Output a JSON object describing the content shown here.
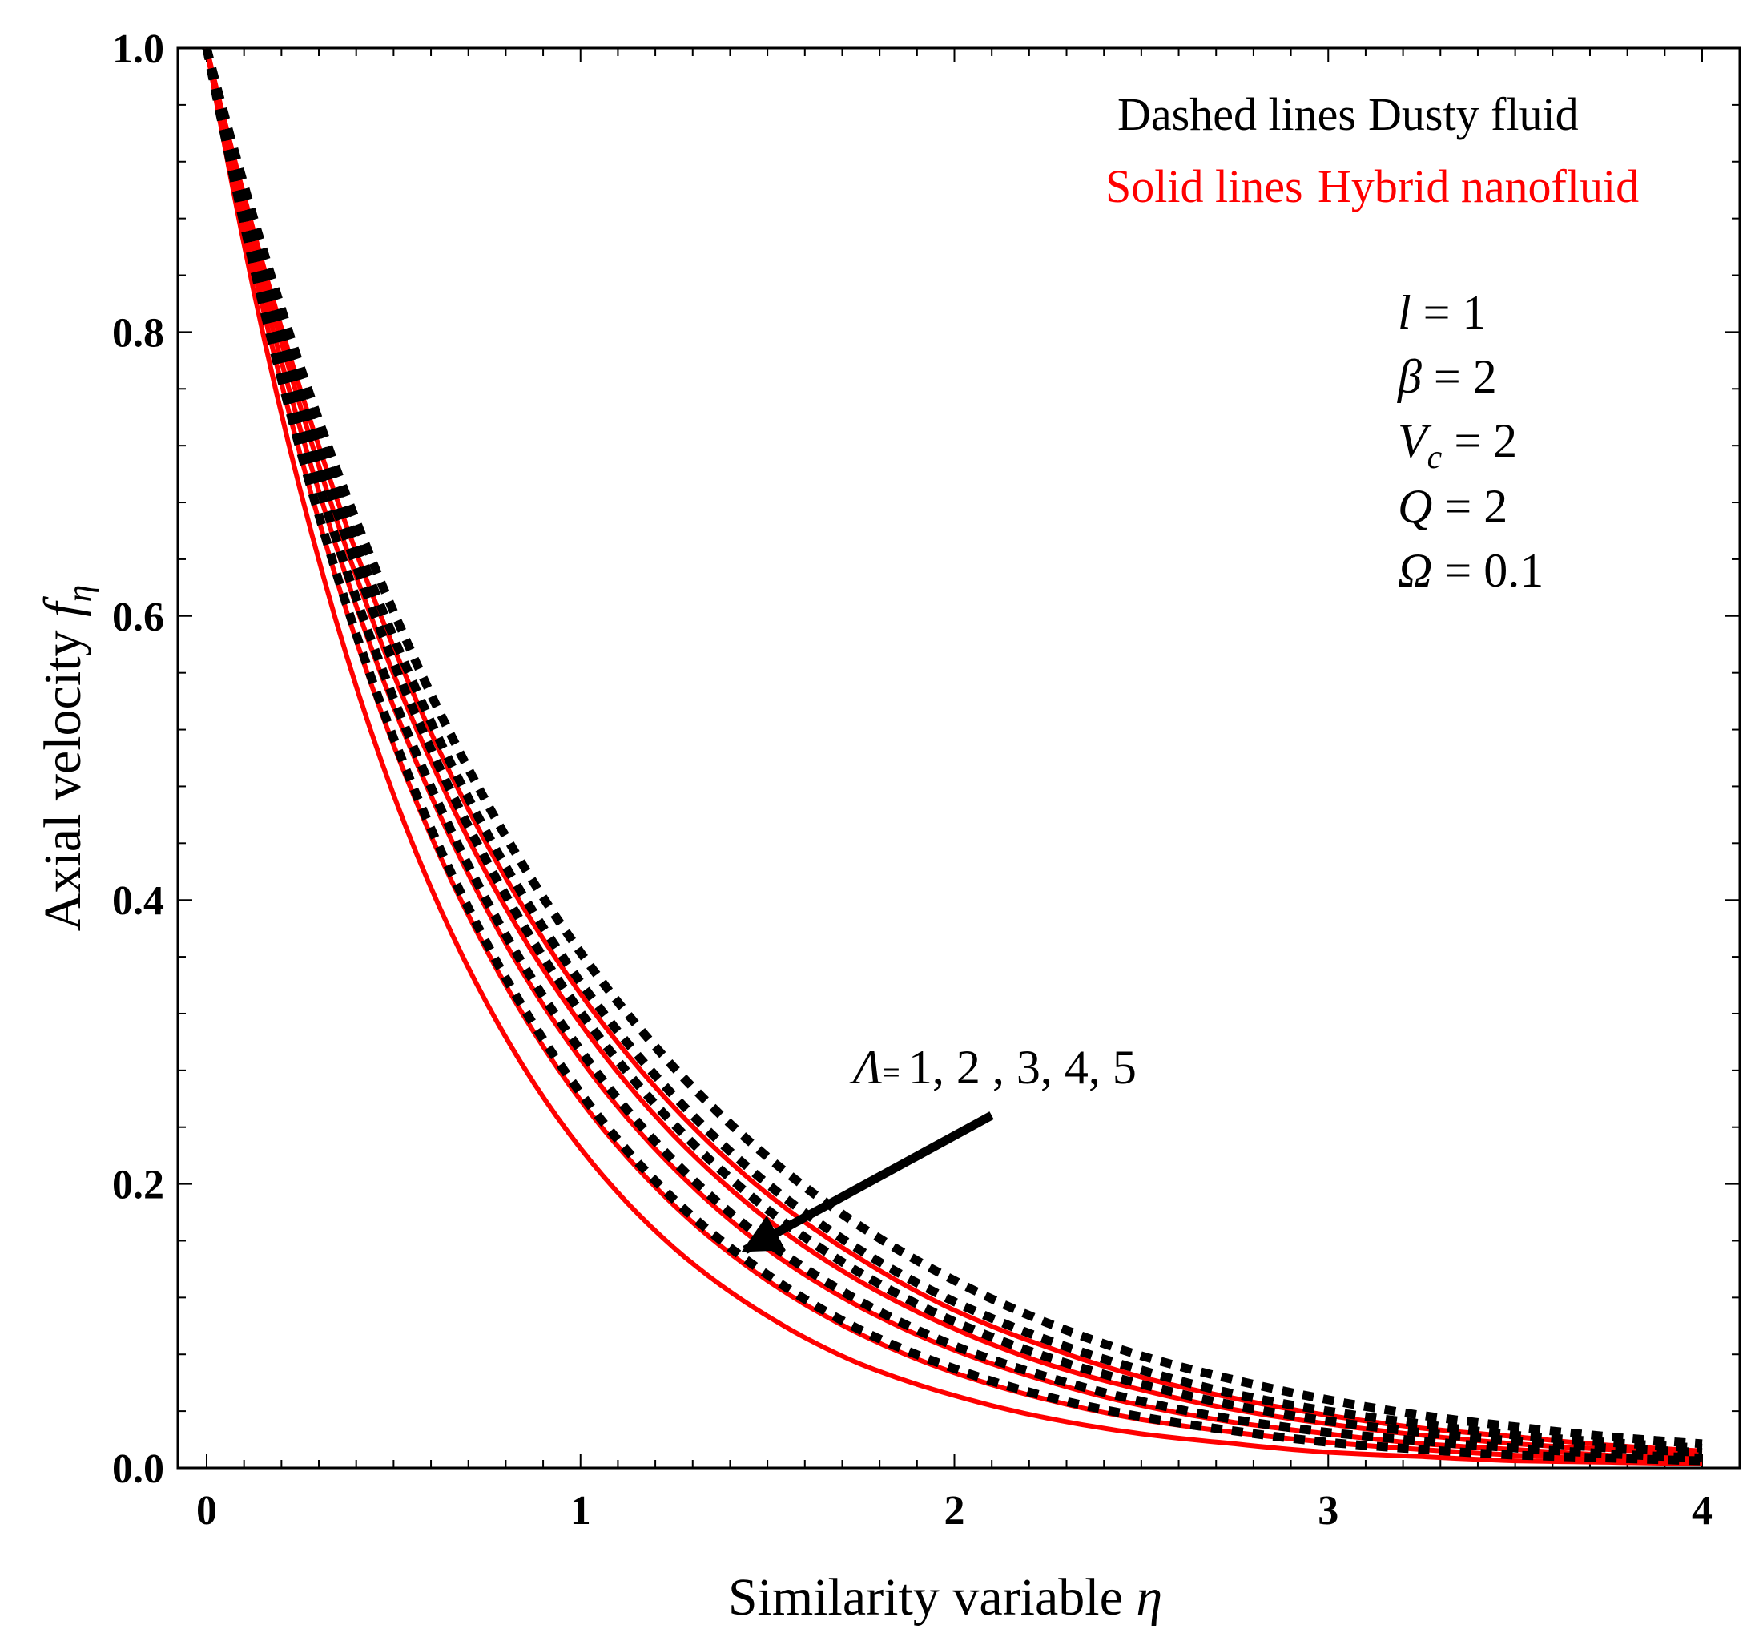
{
  "chart_data": {
    "type": "line",
    "title": "",
    "xlabel": "Similarity variable",
    "xlabel_symbol": "η",
    "ylabel": "Axial  velocity",
    "ylabel_symbol": "f",
    "ylabel_subscript": "η",
    "xlim": [
      0,
      4
    ],
    "ylim": [
      0,
      1
    ],
    "x_ticks": [
      "0",
      "1",
      "2",
      "3",
      "4"
    ],
    "y_ticks": [
      "0.0",
      "0.2",
      "0.4",
      "0.6",
      "0.8",
      "1.0"
    ],
    "grid": false,
    "legend_notes": [
      {
        "style": "Dashed lines",
        "label": "Dusty fluid",
        "color": "#000000"
      },
      {
        "style": "Solid lines",
        "label": "Hybrid nanofluid",
        "color": "#ff0000"
      }
    ],
    "parameters": [
      {
        "symbol": "l",
        "sub": "",
        "value": "1"
      },
      {
        "symbol": "β",
        "sub": "",
        "value": "2"
      },
      {
        "symbol": "V",
        "sub": "c",
        "value": "2"
      },
      {
        "symbol": "Q",
        "sub": "",
        "value": "2"
      },
      {
        "symbol": "Ω",
        "sub": "",
        "value": "0.1"
      }
    ],
    "annotation": {
      "symbol": "Λ",
      "text": "1,  2 , 3, 4, 5"
    },
    "x": [
      0,
      0.25,
      0.5,
      0.75,
      1.0,
      1.25,
      1.5,
      1.75,
      2.0,
      2.25,
      2.5,
      2.75,
      3.0,
      3.25,
      3.5,
      3.75,
      4.0
    ],
    "series": [
      {
        "style": "solid",
        "color": "#ff0000",
        "values": [
          1.0,
          0.689,
          0.474,
          0.327,
          0.225,
          0.155,
          0.107,
          0.073,
          0.051,
          0.035,
          0.024,
          0.017,
          0.011,
          0.008,
          0.005,
          0.004,
          0.003
        ]
      },
      {
        "style": "solid",
        "color": "#ff0000",
        "values": [
          1.0,
          0.714,
          0.509,
          0.364,
          0.259,
          0.185,
          0.132,
          0.094,
          0.067,
          0.048,
          0.034,
          0.025,
          0.018,
          0.013,
          0.009,
          0.006,
          0.005
        ]
      },
      {
        "style": "solid",
        "color": "#ff0000",
        "values": [
          1.0,
          0.732,
          0.536,
          0.393,
          0.288,
          0.211,
          0.154,
          0.113,
          0.083,
          0.061,
          0.044,
          0.032,
          0.024,
          0.017,
          0.013,
          0.009,
          0.007
        ]
      },
      {
        "style": "solid",
        "color": "#ff0000",
        "values": [
          1.0,
          0.748,
          0.559,
          0.418,
          0.313,
          0.234,
          0.175,
          0.131,
          0.098,
          0.073,
          0.055,
          0.041,
          0.031,
          0.023,
          0.017,
          0.013,
          0.01
        ]
      },
      {
        "style": "solid",
        "color": "#ff0000",
        "values": [
          1.0,
          0.76,
          0.578,
          0.439,
          0.334,
          0.254,
          0.193,
          0.147,
          0.111,
          0.085,
          0.064,
          0.049,
          0.037,
          0.028,
          0.022,
          0.016,
          0.012
        ]
      },
      {
        "style": "dashed",
        "color": "#000000",
        "values": [
          1.0,
          0.717,
          0.514,
          0.369,
          0.264,
          0.189,
          0.136,
          0.097,
          0.07,
          0.05,
          0.036,
          0.026,
          0.018,
          0.013,
          0.009,
          0.007,
          0.005
        ]
      },
      {
        "style": "dashed",
        "color": "#000000",
        "values": [
          1.0,
          0.736,
          0.542,
          0.399,
          0.294,
          0.216,
          0.159,
          0.117,
          0.086,
          0.064,
          0.047,
          0.034,
          0.025,
          0.019,
          0.014,
          0.01,
          0.007
        ]
      },
      {
        "style": "dashed",
        "color": "#000000",
        "values": [
          1.0,
          0.753,
          0.567,
          0.427,
          0.321,
          0.242,
          0.182,
          0.137,
          0.103,
          0.078,
          0.059,
          0.044,
          0.033,
          0.025,
          0.019,
          0.014,
          0.011
        ]
      },
      {
        "style": "dashed",
        "color": "#000000",
        "values": [
          1.0,
          0.765,
          0.585,
          0.447,
          0.342,
          0.262,
          0.2,
          0.153,
          0.117,
          0.09,
          0.069,
          0.052,
          0.04,
          0.031,
          0.023,
          0.018,
          0.014
        ]
      },
      {
        "style": "dashed",
        "color": "#000000",
        "values": [
          1.0,
          0.776,
          0.603,
          0.468,
          0.363,
          0.282,
          0.219,
          0.17,
          0.132,
          0.102,
          0.079,
          0.062,
          0.048,
          0.037,
          0.029,
          0.022,
          0.017
        ]
      }
    ]
  }
}
